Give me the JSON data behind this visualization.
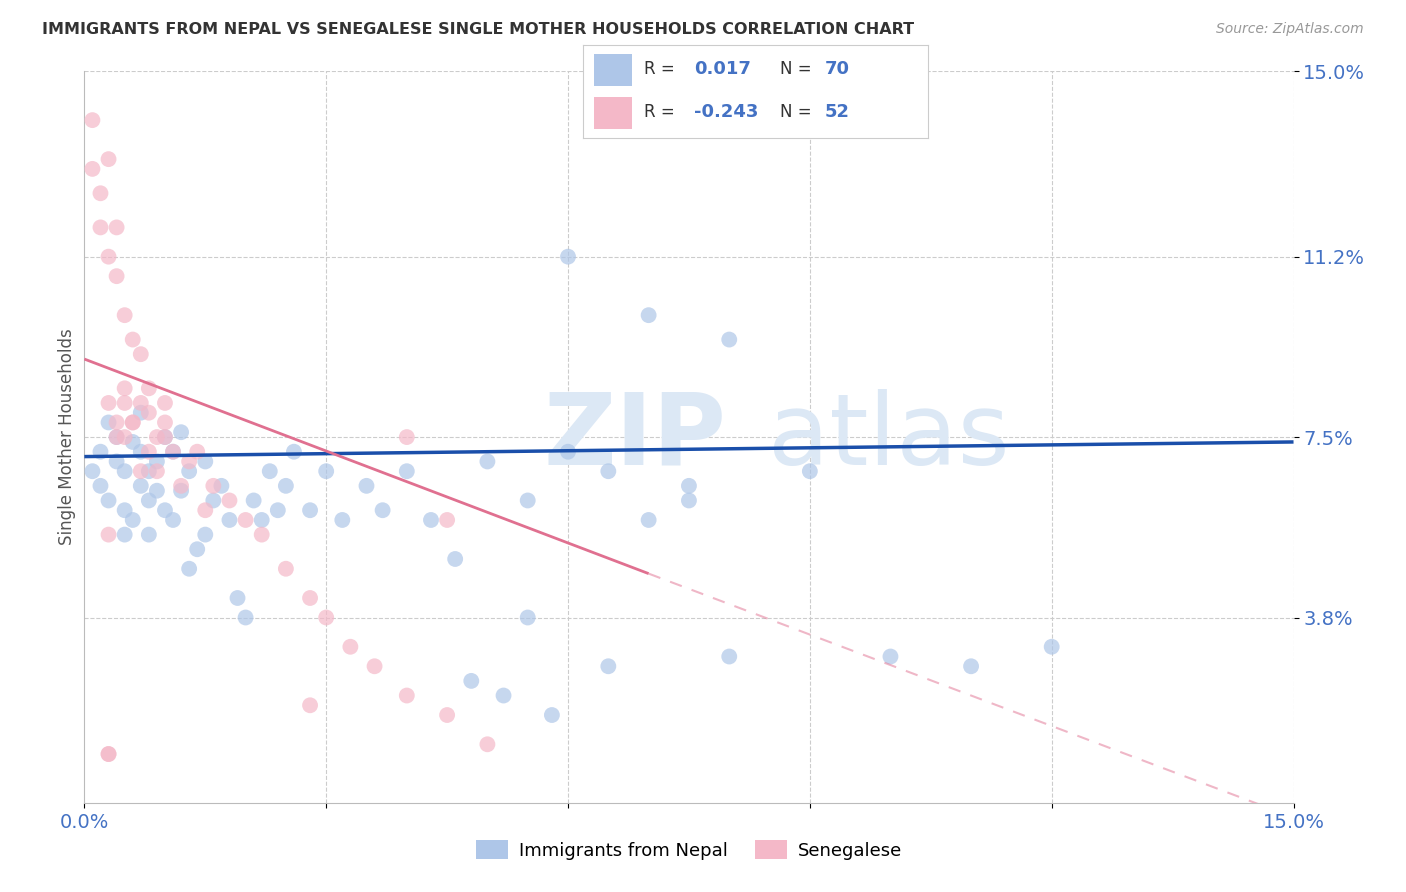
{
  "title": "IMMIGRANTS FROM NEPAL VS SENEGALESE SINGLE MOTHER HOUSEHOLDS CORRELATION CHART",
  "source": "Source: ZipAtlas.com",
  "ylabel": "Single Mother Households",
  "xlim": [
    0.0,
    0.15
  ],
  "ylim": [
    0.0,
    0.15
  ],
  "ytick_vals": [
    0.038,
    0.075,
    0.112,
    0.15
  ],
  "ytick_labels": [
    "3.8%",
    "7.5%",
    "11.2%",
    "15.0%"
  ],
  "xtick_positions": [
    0.0,
    0.03,
    0.06,
    0.09,
    0.12,
    0.15
  ],
  "xtick_labels": [
    "0.0%",
    "",
    "",
    "",
    "",
    "15.0%"
  ],
  "nepal_color": "#aec6e8",
  "senegal_color": "#f4b8c8",
  "nepal_line_color": "#1a4faa",
  "senegal_line_color": "#e07090",
  "nepal_R": 0.017,
  "nepal_N": 70,
  "senegal_R": -0.243,
  "senegal_N": 52,
  "nepal_line_x0": 0.0,
  "nepal_line_y0": 0.071,
  "nepal_line_x1": 0.15,
  "nepal_line_y1": 0.074,
  "senegal_line_solid_x0": 0.0,
  "senegal_line_solid_y0": 0.091,
  "senegal_line_solid_x1": 0.07,
  "senegal_line_solid_y1": 0.047,
  "senegal_line_dash_x0": 0.07,
  "senegal_line_dash_y0": 0.047,
  "senegal_line_dash_x1": 0.15,
  "senegal_line_dash_y1": -0.003,
  "nepal_scatter_x": [
    0.001,
    0.002,
    0.002,
    0.003,
    0.003,
    0.004,
    0.004,
    0.005,
    0.005,
    0.005,
    0.006,
    0.006,
    0.007,
    0.007,
    0.007,
    0.008,
    0.008,
    0.008,
    0.009,
    0.009,
    0.01,
    0.01,
    0.011,
    0.011,
    0.012,
    0.012,
    0.013,
    0.013,
    0.014,
    0.015,
    0.015,
    0.016,
    0.017,
    0.018,
    0.019,
    0.02,
    0.021,
    0.022,
    0.023,
    0.024,
    0.025,
    0.026,
    0.028,
    0.03,
    0.032,
    0.035,
    0.037,
    0.04,
    0.043,
    0.046,
    0.05,
    0.055,
    0.06,
    0.065,
    0.07,
    0.075,
    0.08,
    0.06,
    0.07,
    0.08,
    0.09,
    0.1,
    0.11,
    0.12,
    0.055,
    0.065,
    0.075,
    0.048,
    0.052,
    0.058
  ],
  "nepal_scatter_y": [
    0.068,
    0.072,
    0.065,
    0.062,
    0.078,
    0.07,
    0.075,
    0.06,
    0.068,
    0.055,
    0.074,
    0.058,
    0.072,
    0.065,
    0.08,
    0.062,
    0.068,
    0.055,
    0.07,
    0.064,
    0.075,
    0.06,
    0.058,
    0.072,
    0.064,
    0.076,
    0.048,
    0.068,
    0.052,
    0.055,
    0.07,
    0.062,
    0.065,
    0.058,
    0.042,
    0.038,
    0.062,
    0.058,
    0.068,
    0.06,
    0.065,
    0.072,
    0.06,
    0.068,
    0.058,
    0.065,
    0.06,
    0.068,
    0.058,
    0.05,
    0.07,
    0.062,
    0.072,
    0.068,
    0.058,
    0.065,
    0.03,
    0.112,
    0.1,
    0.095,
    0.068,
    0.03,
    0.028,
    0.032,
    0.038,
    0.028,
    0.062,
    0.025,
    0.022,
    0.018
  ],
  "senegal_scatter_x": [
    0.001,
    0.001,
    0.002,
    0.002,
    0.003,
    0.003,
    0.003,
    0.004,
    0.004,
    0.004,
    0.005,
    0.005,
    0.005,
    0.006,
    0.006,
    0.007,
    0.007,
    0.008,
    0.008,
    0.009,
    0.009,
    0.01,
    0.01,
    0.011,
    0.012,
    0.013,
    0.014,
    0.015,
    0.016,
    0.018,
    0.02,
    0.022,
    0.025,
    0.028,
    0.03,
    0.033,
    0.036,
    0.04,
    0.045,
    0.05,
    0.003,
    0.005,
    0.006,
    0.007,
    0.008,
    0.01,
    0.004,
    0.045,
    0.003,
    0.003,
    0.04,
    0.028
  ],
  "senegal_scatter_y": [
    0.13,
    0.14,
    0.125,
    0.118,
    0.112,
    0.132,
    0.055,
    0.108,
    0.118,
    0.078,
    0.1,
    0.085,
    0.075,
    0.095,
    0.078,
    0.092,
    0.082,
    0.08,
    0.085,
    0.075,
    0.068,
    0.082,
    0.078,
    0.072,
    0.065,
    0.07,
    0.072,
    0.06,
    0.065,
    0.062,
    0.058,
    0.055,
    0.048,
    0.042,
    0.038,
    0.032,
    0.028,
    0.022,
    0.018,
    0.012,
    0.082,
    0.082,
    0.078,
    0.068,
    0.072,
    0.075,
    0.075,
    0.058,
    0.01,
    0.01,
    0.075,
    0.02
  ]
}
